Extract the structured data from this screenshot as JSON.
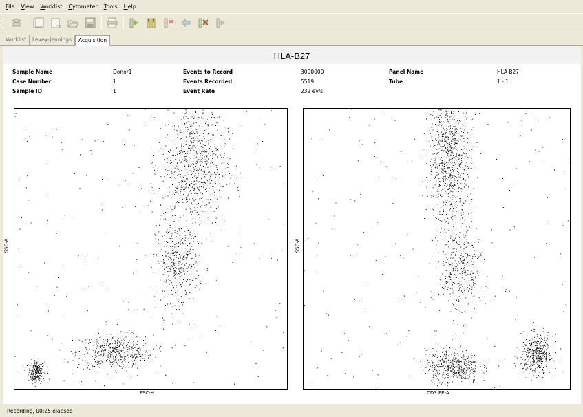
{
  "menu": [
    {
      "first": "F",
      "rest": "ile"
    },
    {
      "first": "V",
      "rest": "iew"
    },
    {
      "first": "W",
      "rest": "orklist"
    },
    {
      "first": "C",
      "rest": "ytometer"
    },
    {
      "first": "T",
      "rest": "ools"
    },
    {
      "first": "H",
      "rest": "elp"
    }
  ],
  "toolbar_icons": [
    "connect-icon",
    "new-document-icon",
    "copy-document-icon",
    "open-folder-icon",
    "save-disk-icon",
    "print-icon",
    "run-icon",
    "acquire-icon",
    "stop-icon",
    "backflush-icon",
    "settings-icon",
    "tube-icon"
  ],
  "tabs": [
    "Worklist",
    "Levey-Jennings",
    "Acquisition"
  ],
  "active_tab": "Acquisition",
  "panel_title": "HLA-B27",
  "info": {
    "sample_name_label": "Sample Name",
    "sample_name_value": "Donor1",
    "case_number_label": "Case Number",
    "case_number_value": "1",
    "sample_id_label": "Sample ID",
    "sample_id_value": "1",
    "events_to_record_label": "Events to Record",
    "events_to_record_value": "3000000",
    "events_recorded_label": "Events Recorded",
    "events_recorded_value": "5519",
    "event_rate_label": "Event Rate",
    "event_rate_value": "232 ev/s",
    "panel_name_label": "Panel Name",
    "panel_name_value": "HLA-B27",
    "tube_label": "Tube",
    "tube_value": "1 - 1"
  },
  "chart_data": [
    {
      "type": "scatter",
      "xlabel": "FSC-H",
      "ylabel": "SSC-A",
      "clusters": [
        {
          "name": "",
          "x": 0.08,
          "y": 0.06,
          "sx": 0.015,
          "sy": 0.02,
          "n": 260
        },
        {
          "name": "",
          "x": 0.37,
          "y": 0.13,
          "sx": 0.07,
          "sy": 0.03,
          "n": 520
        },
        {
          "name": "",
          "x": 0.6,
          "y": 0.45,
          "sx": 0.04,
          "sy": 0.07,
          "n": 420
        },
        {
          "name": "",
          "x": 0.66,
          "y": 0.8,
          "sx": 0.06,
          "sy": 0.11,
          "n": 900
        }
      ],
      "background_points": 220
    },
    {
      "type": "scatter",
      "xlabel": "CD3 PE-A",
      "ylabel": "SSC-A",
      "clusters": [
        {
          "name": "",
          "x": 0.56,
          "y": 0.08,
          "sx": 0.05,
          "sy": 0.03,
          "n": 500
        },
        {
          "name": "",
          "x": 0.88,
          "y": 0.12,
          "sx": 0.03,
          "sy": 0.035,
          "n": 450
        },
        {
          "name": "",
          "x": 0.59,
          "y": 0.42,
          "sx": 0.04,
          "sy": 0.08,
          "n": 400
        },
        {
          "name": "",
          "x": 0.55,
          "y": 0.82,
          "sx": 0.04,
          "sy": 0.12,
          "n": 950
        }
      ],
      "background_points": 200
    }
  ],
  "status": "Recording, 00:25 elapsed"
}
